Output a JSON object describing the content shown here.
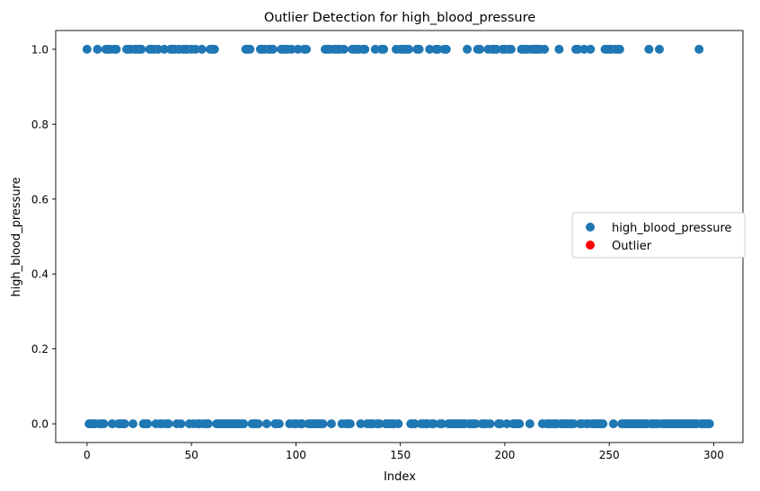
{
  "chart_data": {
    "type": "scatter",
    "title": "Outlier Detection for high_blood_pressure",
    "xlabel": "Index",
    "ylabel": "high_blood_pressure",
    "xlim": [
      -15,
      314
    ],
    "ylim": [
      -0.05,
      1.05
    ],
    "xticks": [
      0,
      50,
      100,
      150,
      200,
      250,
      300
    ],
    "yticks": [
      0.0,
      0.2,
      0.4,
      0.6,
      0.8,
      1.0
    ],
    "xtick_labels": [
      "0",
      "50",
      "100",
      "150",
      "200",
      "250",
      "300"
    ],
    "ytick_labels": [
      "0.0",
      "0.2",
      "0.4",
      "0.6",
      "0.8",
      "1.0"
    ],
    "grid": false,
    "legend_position": "center-right",
    "series": [
      {
        "name": "high_blood_pressure",
        "color": "#1f77b4",
        "marker": "circle",
        "points": [
          [
            0,
            1
          ],
          [
            1,
            0
          ],
          [
            2,
            0
          ],
          [
            3,
            0
          ],
          [
            4,
            0
          ],
          [
            5,
            1
          ],
          [
            6,
            0
          ],
          [
            7,
            0
          ],
          [
            8,
            0
          ],
          [
            9,
            1
          ],
          [
            10,
            1
          ],
          [
            11,
            1
          ],
          [
            12,
            0
          ],
          [
            13,
            1
          ],
          [
            14,
            1
          ],
          [
            15,
            0
          ],
          [
            16,
            0
          ],
          [
            17,
            0
          ],
          [
            18,
            0
          ],
          [
            19,
            1
          ],
          [
            20,
            1
          ],
          [
            21,
            1
          ],
          [
            22,
            0
          ],
          [
            23,
            1
          ],
          [
            24,
            1
          ],
          [
            25,
            1
          ],
          [
            26,
            1
          ],
          [
            27,
            0
          ],
          [
            28,
            0
          ],
          [
            29,
            0
          ],
          [
            30,
            1
          ],
          [
            31,
            1
          ],
          [
            32,
            1
          ],
          [
            33,
            0
          ],
          [
            34,
            1
          ],
          [
            35,
            0
          ],
          [
            36,
            0
          ],
          [
            37,
            1
          ],
          [
            38,
            0
          ],
          [
            39,
            0
          ],
          [
            40,
            1
          ],
          [
            41,
            1
          ],
          [
            42,
            1
          ],
          [
            43,
            0
          ],
          [
            44,
            1
          ],
          [
            45,
            0
          ],
          [
            46,
            1
          ],
          [
            47,
            1
          ],
          [
            48,
            1
          ],
          [
            49,
            0
          ],
          [
            50,
            1
          ],
          [
            51,
            0
          ],
          [
            52,
            1
          ],
          [
            53,
            0
          ],
          [
            54,
            0
          ],
          [
            55,
            1
          ],
          [
            56,
            0
          ],
          [
            57,
            0
          ],
          [
            58,
            0
          ],
          [
            59,
            1
          ],
          [
            60,
            1
          ],
          [
            61,
            1
          ],
          [
            62,
            0
          ],
          [
            63,
            0
          ],
          [
            64,
            0
          ],
          [
            65,
            0
          ],
          [
            66,
            0
          ],
          [
            67,
            0
          ],
          [
            68,
            0
          ],
          [
            69,
            0
          ],
          [
            70,
            0
          ],
          [
            71,
            0
          ],
          [
            72,
            0
          ],
          [
            73,
            0
          ],
          [
            74,
            0
          ],
          [
            75,
            0
          ],
          [
            76,
            1
          ],
          [
            77,
            1
          ],
          [
            78,
            1
          ],
          [
            79,
            0
          ],
          [
            80,
            0
          ],
          [
            81,
            0
          ],
          [
            82,
            0
          ],
          [
            83,
            1
          ],
          [
            84,
            1
          ],
          [
            85,
            1
          ],
          [
            86,
            0
          ],
          [
            87,
            1
          ],
          [
            88,
            1
          ],
          [
            89,
            1
          ],
          [
            90,
            0
          ],
          [
            91,
            0
          ],
          [
            92,
            0
          ],
          [
            93,
            1
          ],
          [
            94,
            1
          ],
          [
            95,
            1
          ],
          [
            96,
            1
          ],
          [
            97,
            0
          ],
          [
            98,
            1
          ],
          [
            99,
            0
          ],
          [
            100,
            0
          ],
          [
            101,
            1
          ],
          [
            102,
            0
          ],
          [
            103,
            0
          ],
          [
            104,
            1
          ],
          [
            105,
            1
          ],
          [
            106,
            0
          ],
          [
            107,
            0
          ],
          [
            108,
            0
          ],
          [
            109,
            0
          ],
          [
            110,
            0
          ],
          [
            111,
            0
          ],
          [
            112,
            0
          ],
          [
            113,
            0
          ],
          [
            114,
            1
          ],
          [
            115,
            1
          ],
          [
            116,
            1
          ],
          [
            117,
            0
          ],
          [
            118,
            1
          ],
          [
            119,
            1
          ],
          [
            120,
            1
          ],
          [
            121,
            1
          ],
          [
            122,
            0
          ],
          [
            123,
            1
          ],
          [
            124,
            0
          ],
          [
            125,
            0
          ],
          [
            126,
            0
          ],
          [
            127,
            1
          ],
          [
            128,
            1
          ],
          [
            129,
            1
          ],
          [
            130,
            1
          ],
          [
            131,
            0
          ],
          [
            132,
            1
          ],
          [
            133,
            1
          ],
          [
            134,
            0
          ],
          [
            135,
            0
          ],
          [
            136,
            0
          ],
          [
            137,
            0
          ],
          [
            138,
            1
          ],
          [
            139,
            0
          ],
          [
            140,
            0
          ],
          [
            141,
            1
          ],
          [
            142,
            1
          ],
          [
            143,
            0
          ],
          [
            144,
            0
          ],
          [
            145,
            0
          ],
          [
            146,
            0
          ],
          [
            147,
            0
          ],
          [
            148,
            1
          ],
          [
            149,
            0
          ],
          [
            150,
            1
          ],
          [
            151,
            1
          ],
          [
            152,
            1
          ],
          [
            153,
            1
          ],
          [
            154,
            1
          ],
          [
            155,
            0
          ],
          [
            156,
            0
          ],
          [
            157,
            0
          ],
          [
            158,
            1
          ],
          [
            159,
            1
          ],
          [
            160,
            0
          ],
          [
            161,
            0
          ],
          [
            162,
            0
          ],
          [
            163,
            0
          ],
          [
            164,
            1
          ],
          [
            165,
            0
          ],
          [
            166,
            0
          ],
          [
            167,
            1
          ],
          [
            168,
            1
          ],
          [
            169,
            0
          ],
          [
            170,
            0
          ],
          [
            171,
            1
          ],
          [
            172,
            1
          ],
          [
            173,
            0
          ],
          [
            174,
            0
          ],
          [
            175,
            0
          ],
          [
            176,
            0
          ],
          [
            177,
            0
          ],
          [
            178,
            0
          ],
          [
            179,
            0
          ],
          [
            180,
            0
          ],
          [
            181,
            0
          ],
          [
            182,
            1
          ],
          [
            183,
            0
          ],
          [
            184,
            0
          ],
          [
            185,
            0
          ],
          [
            186,
            0
          ],
          [
            187,
            1
          ],
          [
            188,
            1
          ],
          [
            189,
            0
          ],
          [
            190,
            0
          ],
          [
            191,
            0
          ],
          [
            192,
            1
          ],
          [
            193,
            0
          ],
          [
            194,
            1
          ],
          [
            195,
            1
          ],
          [
            196,
            1
          ],
          [
            197,
            0
          ],
          [
            198,
            0
          ],
          [
            199,
            1
          ],
          [
            200,
            1
          ],
          [
            201,
            0
          ],
          [
            202,
            1
          ],
          [
            203,
            1
          ],
          [
            204,
            0
          ],
          [
            205,
            0
          ],
          [
            206,
            0
          ],
          [
            207,
            0
          ],
          [
            208,
            1
          ],
          [
            209,
            1
          ],
          [
            210,
            1
          ],
          [
            211,
            1
          ],
          [
            212,
            0
          ],
          [
            213,
            1
          ],
          [
            214,
            1
          ],
          [
            215,
            1
          ],
          [
            216,
            1
          ],
          [
            217,
            1
          ],
          [
            218,
            0
          ],
          [
            219,
            1
          ],
          [
            220,
            0
          ],
          [
            221,
            0
          ],
          [
            222,
            0
          ],
          [
            223,
            0
          ],
          [
            224,
            0
          ],
          [
            225,
            0
          ],
          [
            226,
            1
          ],
          [
            227,
            0
          ],
          [
            228,
            0
          ],
          [
            229,
            0
          ],
          [
            230,
            0
          ],
          [
            231,
            0
          ],
          [
            232,
            0
          ],
          [
            233,
            0
          ],
          [
            234,
            1
          ],
          [
            235,
            1
          ],
          [
            236,
            0
          ],
          [
            237,
            0
          ],
          [
            238,
            1
          ],
          [
            239,
            0
          ],
          [
            240,
            0
          ],
          [
            241,
            1
          ],
          [
            242,
            0
          ],
          [
            243,
            0
          ],
          [
            244,
            0
          ],
          [
            245,
            0
          ],
          [
            246,
            0
          ],
          [
            247,
            0
          ],
          [
            248,
            1
          ],
          [
            249,
            1
          ],
          [
            250,
            1
          ],
          [
            251,
            1
          ],
          [
            252,
            0
          ],
          [
            253,
            1
          ],
          [
            254,
            1
          ],
          [
            255,
            1
          ],
          [
            256,
            0
          ],
          [
            257,
            0
          ],
          [
            258,
            0
          ],
          [
            259,
            0
          ],
          [
            260,
            0
          ],
          [
            261,
            0
          ],
          [
            262,
            0
          ],
          [
            263,
            0
          ],
          [
            264,
            0
          ],
          [
            265,
            0
          ],
          [
            266,
            0
          ],
          [
            267,
            0
          ],
          [
            268,
            0
          ],
          [
            269,
            1
          ],
          [
            270,
            0
          ],
          [
            271,
            0
          ],
          [
            272,
            0
          ],
          [
            273,
            0
          ],
          [
            274,
            1
          ],
          [
            275,
            0
          ],
          [
            276,
            0
          ],
          [
            277,
            0
          ],
          [
            278,
            0
          ],
          [
            279,
            0
          ],
          [
            280,
            0
          ],
          [
            281,
            0
          ],
          [
            282,
            0
          ],
          [
            283,
            0
          ],
          [
            284,
            0
          ],
          [
            285,
            0
          ],
          [
            286,
            0
          ],
          [
            287,
            0
          ],
          [
            288,
            0
          ],
          [
            289,
            0
          ],
          [
            290,
            0
          ],
          [
            291,
            0
          ],
          [
            292,
            0
          ],
          [
            293,
            1
          ],
          [
            294,
            0
          ],
          [
            295,
            0
          ],
          [
            296,
            0
          ],
          [
            297,
            0
          ],
          [
            298,
            0
          ]
        ]
      },
      {
        "name": "Outlier",
        "color": "#ff0000",
        "marker": "circle",
        "points": []
      }
    ]
  }
}
